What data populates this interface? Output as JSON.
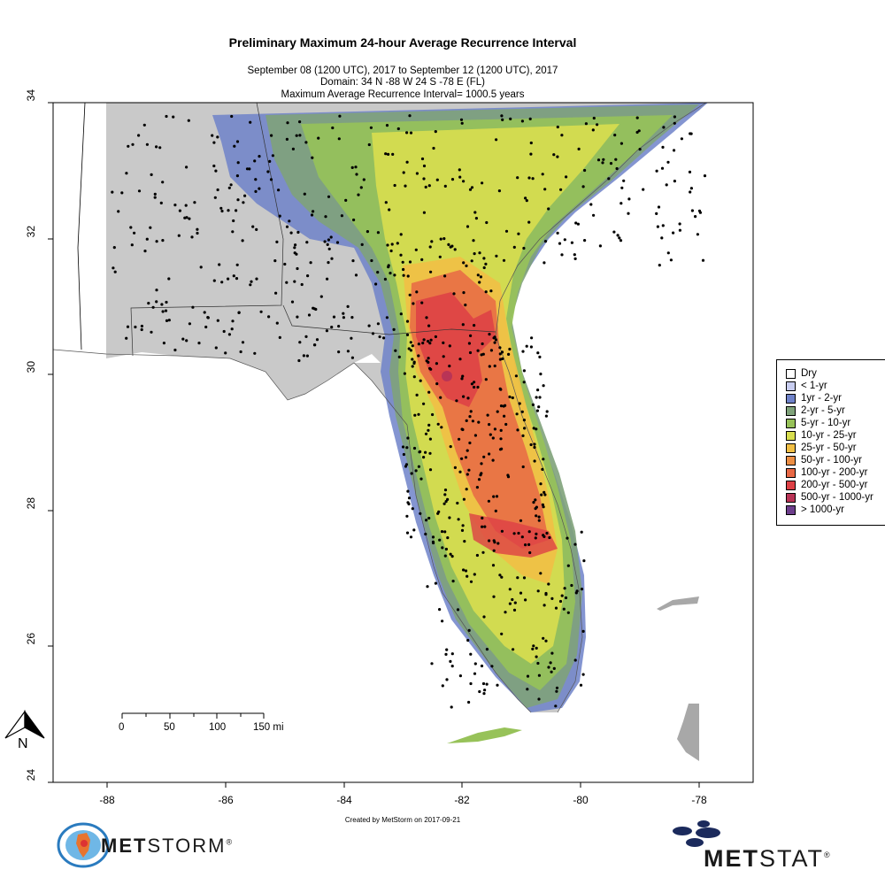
{
  "header": {
    "title": "Preliminary Maximum 24-hour Average Recurrence Interval",
    "subtitle_dates": "September 08 (1200 UTC), 2017 to September 12 (1200 UTC), 2017",
    "subtitle_domain": "Domain: 34 N -88 W 24 S -78 E (FL)",
    "subtitle_max": "Maximum Average Recurrence Interval= 1000.5 years"
  },
  "axes": {
    "y_ticks": [
      "34",
      "32",
      "30",
      "28",
      "26",
      "24"
    ],
    "x_ticks": [
      "-88",
      "-86",
      "-84",
      "-82",
      "-80",
      "-78"
    ]
  },
  "legend": {
    "items": [
      {
        "label": "Dry",
        "color": "#ffffff"
      },
      {
        "label": "< 1-yr",
        "color": "#c8cdf0"
      },
      {
        "label": "1yr - 2-yr",
        "color": "#6f82c9"
      },
      {
        "label": "2-yr - 5-yr",
        "color": "#7fa27a"
      },
      {
        "label": "5-yr - 10-yr",
        "color": "#97c259"
      },
      {
        "label": "10-yr - 25-yr",
        "color": "#d8de4f"
      },
      {
        "label": "25-yr - 50-yr",
        "color": "#f1bf45"
      },
      {
        "label": "50-yr - 100-yr",
        "color": "#ec8e44"
      },
      {
        "label": "100-yr - 200-yr",
        "color": "#e86845"
      },
      {
        "label": "200-yr - 500-yr",
        "color": "#dd4045"
      },
      {
        "label": "500-yr - 1000-yr",
        "color": "#b93456"
      },
      {
        "label": "> 1000-yr",
        "color": "#6d3e8c"
      }
    ]
  },
  "scale_bar": {
    "labels": [
      "0",
      "50",
      "100",
      "150 mi"
    ]
  },
  "north_arrow": {
    "label": "N"
  },
  "credit": "Created by MetStorm on 2017-09-21",
  "logos": {
    "left": {
      "prefix": "MET",
      "suffix": "STORM",
      "mark": "®"
    },
    "right": {
      "prefix": "MET",
      "suffix": "STAT",
      "mark": "®"
    }
  }
}
